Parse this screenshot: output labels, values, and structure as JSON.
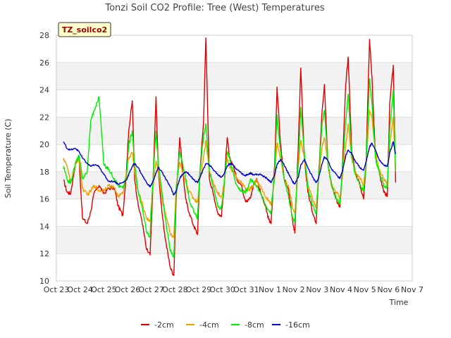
{
  "chart_data": {
    "type": "line",
    "title": "Tonzi Soil CO2 Profile: Tree (West) Temperatures",
    "xlabel": "Time",
    "ylabel": "Soil Temperature (C)",
    "badge": "TZ_soilco2",
    "xlim": [
      0,
      15
    ],
    "ylim": [
      10,
      28
    ],
    "x_ticks": [
      0,
      1,
      2,
      3,
      4,
      5,
      6,
      7,
      8,
      9,
      10,
      11,
      12,
      13,
      14,
      15
    ],
    "x_tick_labels": [
      "Oct 23",
      "Oct 24",
      "Oct 25",
      "Oct 26",
      "Oct 27",
      "Oct 28",
      "Oct 29",
      "Oct 30",
      "Oct 31",
      "Nov 1",
      "Nov 2",
      "Nov 3",
      "Nov 4",
      "Nov 5",
      "Nov 6",
      "Nov 7"
    ],
    "y_ticks": [
      10,
      12,
      14,
      16,
      18,
      20,
      22,
      24,
      26,
      28
    ],
    "y_tick_labels": [
      "10",
      "12",
      "14",
      "16",
      "18",
      "20",
      "22",
      "24",
      "26",
      "28"
    ],
    "grid": "alternating horizontal bands",
    "legend_position": "bottom",
    "series": [
      {
        "name": "-2cm",
        "color": "#dd0000",
        "x": [
          0.3,
          0.45,
          0.6,
          0.8,
          0.95,
          1.1,
          1.3,
          1.45,
          1.6,
          1.8,
          2.0,
          2.2,
          2.45,
          2.6,
          2.8,
          2.95,
          3.05,
          3.2,
          3.3,
          3.45,
          3.6,
          3.8,
          3.95,
          4.05,
          4.2,
          4.3,
          4.45,
          4.6,
          4.8,
          4.95,
          5.05,
          5.2,
          5.3,
          5.45,
          5.6,
          5.8,
          5.95,
          6.05,
          6.2,
          6.3,
          6.45,
          6.6,
          6.8,
          6.95,
          7.05,
          7.2,
          7.3,
          7.45,
          7.6,
          7.8,
          7.95,
          8.05,
          8.2,
          8.3,
          8.45,
          8.6,
          8.8,
          8.95,
          9.05,
          9.2,
          9.3,
          9.45,
          9.6,
          9.8,
          9.95,
          10.05,
          10.2,
          10.3,
          10.45,
          10.6,
          10.8,
          10.95,
          11.05,
          11.2,
          11.3,
          11.45,
          11.6,
          11.8,
          11.95,
          12.05,
          12.2,
          12.3,
          12.45,
          12.6,
          12.8,
          12.95,
          13.05,
          13.2,
          13.3,
          13.45,
          13.6,
          13.8,
          13.95,
          14.05,
          14.2,
          14.3
        ],
        "values": [
          17.4,
          16.5,
          16.4,
          18.6,
          19.1,
          14.6,
          14.2,
          15.1,
          16.5,
          17.0,
          16.4,
          16.8,
          16.8,
          15.5,
          14.8,
          18.0,
          21.0,
          23.2,
          17.5,
          15.5,
          14.5,
          12.3,
          11.9,
          16.0,
          23.5,
          18.0,
          15.0,
          13.0,
          11.0,
          10.4,
          16.0,
          20.5,
          18.5,
          16.0,
          15.0,
          14.0,
          13.4,
          18.0,
          21.5,
          27.8,
          17.5,
          16.5,
          15.0,
          14.7,
          16.5,
          20.5,
          19.0,
          18.5,
          17.5,
          17.0,
          16.0,
          15.8,
          16.2,
          17.0,
          17.5,
          16.5,
          15.5,
          14.5,
          14.2,
          18.5,
          24.2,
          20.0,
          17.5,
          16.5,
          14.5,
          13.5,
          20.0,
          25.6,
          19.0,
          16.5,
          15.0,
          14.2,
          17.5,
          22.5,
          24.4,
          18.5,
          17.0,
          16.0,
          15.4,
          18.0,
          24.5,
          26.4,
          19.5,
          18.0,
          17.0,
          16.0,
          18.5,
          27.7,
          25.0,
          19.0,
          18.0,
          16.5,
          16.2,
          23.0,
          25.8,
          17.2
        ]
      },
      {
        "name": "-4cm",
        "color": "#f0a000",
        "x": [
          0.3,
          0.45,
          0.6,
          0.8,
          0.95,
          1.1,
          1.3,
          1.45,
          1.6,
          1.8,
          2.0,
          2.2,
          2.45,
          2.6,
          2.8,
          2.95,
          3.05,
          3.2,
          3.3,
          3.45,
          3.6,
          3.8,
          3.95,
          4.05,
          4.2,
          4.3,
          4.45,
          4.6,
          4.8,
          4.95,
          5.05,
          5.2,
          5.3,
          5.45,
          5.6,
          5.8,
          5.95,
          6.05,
          6.2,
          6.3,
          6.45,
          6.6,
          6.8,
          6.95,
          7.05,
          7.2,
          7.3,
          7.45,
          7.6,
          7.8,
          7.95,
          8.05,
          8.2,
          8.3,
          8.45,
          8.6,
          8.8,
          8.95,
          9.05,
          9.2,
          9.3,
          9.45,
          9.6,
          9.8,
          9.95,
          10.05,
          10.2,
          10.3,
          10.45,
          10.6,
          10.8,
          10.95,
          11.05,
          11.2,
          11.3,
          11.45,
          11.6,
          11.8,
          11.95,
          12.05,
          12.2,
          12.3,
          12.45,
          12.6,
          12.8,
          12.95,
          13.05,
          13.2,
          13.3,
          13.45,
          13.6,
          13.8,
          13.95,
          14.05,
          14.2,
          14.3
        ],
        "values": [
          19.0,
          18.4,
          17.2,
          18.5,
          19.0,
          16.8,
          16.3,
          16.6,
          17.0,
          16.6,
          16.7,
          17.0,
          16.8,
          16.2,
          16.4,
          18.0,
          19.0,
          19.4,
          18.0,
          16.5,
          15.8,
          14.6,
          14.4,
          16.5,
          18.8,
          18.0,
          16.0,
          15.0,
          13.5,
          13.2,
          17.0,
          18.7,
          18.0,
          17.2,
          16.6,
          16.0,
          15.8,
          17.5,
          19.0,
          20.3,
          18.0,
          17.2,
          16.5,
          16.1,
          17.0,
          19.0,
          18.4,
          18.0,
          17.5,
          17.2,
          16.8,
          16.6,
          16.8,
          17.0,
          17.4,
          16.9,
          16.2,
          15.9,
          15.6,
          17.5,
          20.1,
          19.0,
          17.5,
          16.8,
          15.5,
          15.0,
          18.5,
          20.3,
          19.0,
          17.0,
          16.0,
          15.4,
          17.5,
          19.8,
          20.5,
          18.5,
          17.0,
          16.5,
          16.1,
          17.5,
          20.0,
          21.5,
          19.0,
          18.0,
          17.5,
          17.0,
          18.5,
          22.5,
          22.0,
          19.5,
          18.2,
          17.5,
          17.2,
          20.0,
          22.0,
          18.0
        ]
      },
      {
        "name": "-8cm",
        "color": "#00ee00",
        "x": [
          0.3,
          0.45,
          0.6,
          0.8,
          0.95,
          1.1,
          1.3,
          1.45,
          1.6,
          1.8,
          2.0,
          2.2,
          2.45,
          2.6,
          2.8,
          2.95,
          3.05,
          3.2,
          3.3,
          3.45,
          3.6,
          3.8,
          3.95,
          4.05,
          4.2,
          4.3,
          4.45,
          4.6,
          4.8,
          4.95,
          5.05,
          5.2,
          5.3,
          5.45,
          5.6,
          5.8,
          5.95,
          6.05,
          6.2,
          6.3,
          6.45,
          6.6,
          6.8,
          6.95,
          7.05,
          7.2,
          7.3,
          7.45,
          7.6,
          7.8,
          7.95,
          8.05,
          8.2,
          8.3,
          8.45,
          8.6,
          8.8,
          8.95,
          9.05,
          9.2,
          9.3,
          9.45,
          9.6,
          9.8,
          9.95,
          10.05,
          10.2,
          10.3,
          10.45,
          10.6,
          10.8,
          10.95,
          11.05,
          11.2,
          11.3,
          11.45,
          11.6,
          11.8,
          11.95,
          12.05,
          12.2,
          12.3,
          12.45,
          12.6,
          12.8,
          12.95,
          13.05,
          13.2,
          13.3,
          13.45,
          13.6,
          13.8,
          13.95,
          14.05,
          14.2,
          14.3
        ],
        "values": [
          18.4,
          17.4,
          17.2,
          18.6,
          19.2,
          17.5,
          18.0,
          21.8,
          22.5,
          23.5,
          18.5,
          18.2,
          17.5,
          17.0,
          16.8,
          17.5,
          20.0,
          21.0,
          18.5,
          16.5,
          15.5,
          13.6,
          13.2,
          16.8,
          21.0,
          18.5,
          16.5,
          14.5,
          12.2,
          11.8,
          16.5,
          19.5,
          18.8,
          17.5,
          16.0,
          15.0,
          14.6,
          18.0,
          20.5,
          21.5,
          18.0,
          17.0,
          15.5,
          15.3,
          16.5,
          19.5,
          19.0,
          18.0,
          17.0,
          16.6,
          16.5,
          16.8,
          17.5,
          17.2,
          17.0,
          16.5,
          15.6,
          15.2,
          15.0,
          18.0,
          22.2,
          19.5,
          17.5,
          16.0,
          14.7,
          14.3,
          18.8,
          22.7,
          19.5,
          16.8,
          15.5,
          14.9,
          17.5,
          21.5,
          22.5,
          18.6,
          17.0,
          16.0,
          15.7,
          17.8,
          21.8,
          23.7,
          19.0,
          17.8,
          17.0,
          16.6,
          18.2,
          24.8,
          23.0,
          19.0,
          18.0,
          17.0,
          16.9,
          21.0,
          24.0,
          18.0
        ]
      },
      {
        "name": "-16cm",
        "color": "#0000cc",
        "x": [
          0.3,
          0.45,
          0.6,
          0.8,
          0.95,
          1.1,
          1.3,
          1.45,
          1.6,
          1.8,
          2.0,
          2.2,
          2.45,
          2.6,
          2.8,
          2.95,
          3.05,
          3.2,
          3.3,
          3.45,
          3.6,
          3.8,
          3.95,
          4.05,
          4.2,
          4.3,
          4.45,
          4.6,
          4.8,
          4.95,
          5.05,
          5.2,
          5.3,
          5.45,
          5.6,
          5.8,
          5.95,
          6.05,
          6.2,
          6.3,
          6.45,
          6.6,
          6.8,
          6.95,
          7.05,
          7.2,
          7.3,
          7.45,
          7.6,
          7.8,
          7.95,
          8.05,
          8.2,
          8.3,
          8.45,
          8.6,
          8.8,
          8.95,
          9.05,
          9.2,
          9.3,
          9.45,
          9.6,
          9.8,
          9.95,
          10.05,
          10.2,
          10.3,
          10.45,
          10.6,
          10.8,
          10.95,
          11.05,
          11.2,
          11.3,
          11.45,
          11.6,
          11.8,
          11.95,
          12.05,
          12.2,
          12.3,
          12.45,
          12.6,
          12.8,
          12.95,
          13.05,
          13.2,
          13.3,
          13.45,
          13.6,
          13.8,
          13.95,
          14.05,
          14.2,
          14.3
        ],
        "values": [
          20.2,
          19.7,
          19.6,
          19.7,
          19.5,
          19.0,
          18.6,
          18.4,
          18.5,
          18.4,
          17.8,
          17.3,
          17.3,
          17.1,
          17.2,
          17.4,
          17.8,
          18.4,
          18.6,
          18.3,
          17.8,
          17.2,
          16.9,
          17.2,
          17.9,
          18.3,
          18.0,
          17.5,
          16.9,
          16.3,
          16.6,
          17.5,
          17.8,
          18.0,
          17.8,
          17.4,
          17.2,
          17.6,
          18.2,
          18.6,
          18.5,
          18.2,
          17.8,
          17.6,
          17.8,
          18.4,
          18.6,
          18.5,
          18.2,
          17.9,
          17.7,
          17.8,
          17.9,
          17.8,
          17.8,
          17.8,
          17.6,
          17.4,
          17.2,
          17.8,
          18.5,
          18.9,
          18.5,
          17.8,
          17.3,
          17.1,
          17.6,
          18.5,
          18.9,
          18.3,
          17.6,
          17.2,
          17.5,
          18.6,
          19.1,
          18.8,
          18.2,
          17.8,
          17.5,
          18.0,
          19.2,
          19.6,
          19.3,
          18.8,
          18.3,
          18.1,
          18.7,
          19.8,
          20.1,
          19.6,
          18.9,
          18.5,
          18.4,
          19.4,
          20.2,
          19.3
        ]
      }
    ]
  }
}
